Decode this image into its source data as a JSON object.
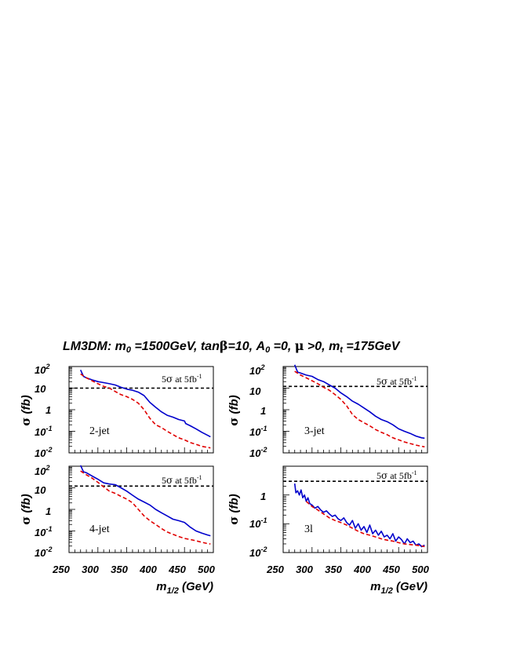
{
  "figure": {
    "title": {
      "prefix": "LM3DM: m",
      "m0_sub": "0",
      "m0_val": " =1500GeV, tan",
      "beta": "β",
      "tb_val": "=10, A",
      "a0_sub": "0",
      "a0_val": " =0, ",
      "mu": "μ",
      "mu_val": " >0, m",
      "mt_sub": "t",
      "mt_val": " =175GeV"
    },
    "ylabel": {
      "sigma": "σ",
      "unit": " (fb)"
    },
    "xlabel": {
      "main": "m",
      "sub": "1/2",
      "unit": " (GeV)"
    },
    "y_tick_labels": {
      "p2": {
        "base": "10",
        "exp": "2"
      },
      "p1": {
        "base": "10",
        "exp": ""
      },
      "p0": {
        "base": "1",
        "exp": ""
      },
      "m1": {
        "base": "10",
        "exp": "-1"
      },
      "m2": {
        "base": "10",
        "exp": "-2"
      }
    },
    "x_tick_labels": [
      "250",
      "300",
      "350",
      "400",
      "450",
      "500"
    ],
    "annotation": {
      "prefix": "5",
      "sigma": "σ",
      "mid": " at 5fb",
      "exp": "-1"
    },
    "colors": {
      "series_solid": "#0000cc",
      "series_dashed": "#e00000",
      "threshold": "#000000"
    }
  },
  "chart_data": [
    {
      "type": "line",
      "panel_label": "2-jet",
      "xlim": [
        250,
        500
      ],
      "ylim": [
        0.01,
        100
      ],
      "yscale": "log",
      "threshold": 10,
      "series": [
        {
          "style": "solid",
          "x": [
            270,
            275,
            280,
            290,
            300,
            310,
            320,
            330,
            340,
            350,
            360,
            370,
            380,
            390,
            400,
            410,
            420,
            430,
            440,
            450,
            452,
            460,
            470,
            480,
            490,
            495
          ],
          "y": [
            70,
            35,
            30,
            24,
            20,
            18,
            16,
            14,
            11,
            9,
            8,
            6.5,
            4.5,
            2.2,
            1.3,
            0.8,
            0.55,
            0.45,
            0.35,
            0.3,
            0.23,
            0.18,
            0.13,
            0.09,
            0.065,
            0.055
          ]
        },
        {
          "style": "dashed",
          "x": [
            270,
            280,
            290,
            300,
            310,
            320,
            330,
            340,
            350,
            360,
            370,
            380,
            390,
            400,
            410,
            420,
            430,
            440,
            450,
            460,
            470,
            480,
            490,
            495
          ],
          "y": [
            45,
            30,
            22,
            16,
            12,
            10,
            7,
            5,
            4,
            3,
            2,
            1,
            0.4,
            0.2,
            0.15,
            0.1,
            0.07,
            0.05,
            0.04,
            0.03,
            0.025,
            0.02,
            0.018,
            0.017
          ]
        }
      ]
    },
    {
      "type": "line",
      "panel_label": "3-jet",
      "xlim": [
        250,
        500
      ],
      "ylim": [
        0.01,
        100
      ],
      "yscale": "log",
      "threshold": 12,
      "series": [
        {
          "style": "solid",
          "x": [
            270,
            275,
            280,
            290,
            300,
            310,
            320,
            330,
            340,
            350,
            360,
            370,
            380,
            390,
            400,
            410,
            420,
            430,
            440,
            450,
            460,
            470,
            480,
            490,
            495
          ],
          "y": [
            120,
            55,
            50,
            40,
            35,
            25,
            20,
            14,
            10,
            6,
            4,
            2.5,
            1.8,
            1.2,
            0.8,
            0.5,
            0.35,
            0.28,
            0.2,
            0.13,
            0.1,
            0.08,
            0.06,
            0.05,
            0.048
          ]
        },
        {
          "style": "dashed",
          "x": [
            270,
            280,
            290,
            300,
            310,
            320,
            330,
            340,
            350,
            360,
            370,
            380,
            390,
            400,
            410,
            420,
            430,
            440,
            450,
            460,
            470,
            480,
            490,
            495
          ],
          "y": [
            60,
            40,
            30,
            22,
            16,
            11,
            8,
            5,
            3,
            1.5,
            0.6,
            0.35,
            0.25,
            0.18,
            0.12,
            0.09,
            0.07,
            0.05,
            0.04,
            0.032,
            0.027,
            0.023,
            0.02,
            0.019
          ]
        }
      ]
    },
    {
      "type": "line",
      "panel_label": "4-jet",
      "xlim": [
        250,
        500
      ],
      "ylim": [
        0.01,
        100
      ],
      "yscale": "log",
      "threshold": 12,
      "series": [
        {
          "style": "solid",
          "x": [
            270,
            275,
            280,
            290,
            300,
            310,
            320,
            330,
            340,
            350,
            360,
            370,
            380,
            390,
            400,
            410,
            420,
            430,
            440,
            450,
            460,
            470,
            480,
            490,
            495
          ],
          "y": [
            110,
            55,
            50,
            35,
            25,
            17,
            15,
            14,
            10,
            7,
            4.5,
            3,
            2.2,
            1.6,
            1,
            0.7,
            0.5,
            0.35,
            0.3,
            0.25,
            0.15,
            0.1,
            0.08,
            0.065,
            0.06
          ]
        },
        {
          "style": "dashed",
          "x": [
            270,
            280,
            290,
            300,
            310,
            320,
            330,
            340,
            350,
            360,
            370,
            380,
            390,
            400,
            410,
            420,
            430,
            440,
            450,
            460,
            470,
            480,
            490,
            495
          ],
          "y": [
            60,
            40,
            28,
            18,
            11,
            7,
            5.5,
            4,
            3,
            2,
            1,
            0.5,
            0.3,
            0.2,
            0.13,
            0.09,
            0.07,
            0.055,
            0.045,
            0.04,
            0.035,
            0.03,
            0.026,
            0.025
          ]
        }
      ]
    },
    {
      "type": "line",
      "panel_label": "3l",
      "xlim": [
        250,
        500
      ],
      "ylim": [
        0.01,
        10
      ],
      "yscale": "log",
      "threshold": 3,
      "series": [
        {
          "style": "solid",
          "x": [
            270,
            272,
            275,
            278,
            281,
            284,
            287,
            290,
            293,
            296,
            300,
            305,
            310,
            315,
            320,
            325,
            330,
            335,
            340,
            345,
            350,
            355,
            360,
            365,
            370,
            375,
            380,
            385,
            390,
            395,
            400,
            405,
            410,
            415,
            420,
            425,
            430,
            435,
            440,
            445,
            450,
            455,
            460,
            465,
            470,
            475,
            480,
            485,
            490,
            495
          ],
          "y": [
            2.5,
            1.2,
            1.4,
            1.0,
            1.5,
            0.8,
            1.0,
            0.6,
            0.8,
            0.5,
            0.45,
            0.35,
            0.4,
            0.3,
            0.25,
            0.28,
            0.22,
            0.18,
            0.2,
            0.15,
            0.13,
            0.16,
            0.11,
            0.09,
            0.13,
            0.07,
            0.1,
            0.06,
            0.08,
            0.05,
            0.09,
            0.045,
            0.06,
            0.04,
            0.055,
            0.035,
            0.04,
            0.03,
            0.045,
            0.025,
            0.035,
            0.028,
            0.02,
            0.03,
            0.022,
            0.025,
            0.018,
            0.02,
            0.016,
            0.018
          ]
        },
        {
          "style": "dashed",
          "x": [
            290,
            300,
            310,
            320,
            330,
            340,
            350,
            360,
            370,
            380,
            390,
            400,
            410,
            420,
            430,
            440,
            450,
            460,
            470,
            480,
            490,
            495
          ],
          "y": [
            0.6,
            0.4,
            0.3,
            0.22,
            0.16,
            0.13,
            0.11,
            0.09,
            0.07,
            0.055,
            0.045,
            0.04,
            0.035,
            0.03,
            0.027,
            0.025,
            0.022,
            0.02,
            0.019,
            0.018,
            0.017,
            0.016
          ]
        }
      ]
    }
  ]
}
